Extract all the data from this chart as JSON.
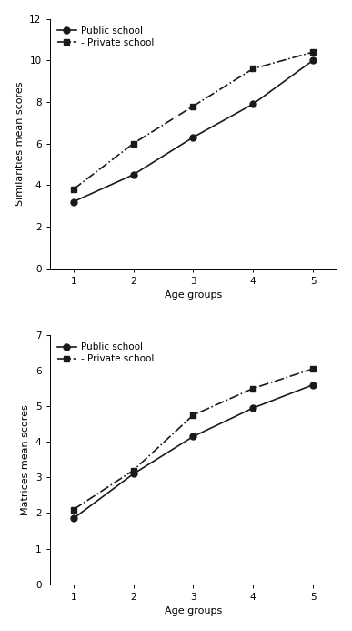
{
  "top_chart": {
    "public_school": [
      3.2,
      4.5,
      6.3,
      7.9,
      10.0
    ],
    "private_school": [
      3.8,
      6.0,
      7.8,
      9.6,
      10.4
    ],
    "x": [
      1,
      2,
      3,
      4,
      5
    ],
    "ylabel": "Similarities mean scores",
    "xlabel": "Age groups",
    "ylim": [
      0,
      12
    ],
    "yticks": [
      0,
      2,
      4,
      6,
      8,
      10,
      12
    ],
    "xticks": [
      1,
      2,
      3,
      4,
      5
    ]
  },
  "bottom_chart": {
    "public_school": [
      1.85,
      3.1,
      4.15,
      4.95,
      5.6
    ],
    "private_school": [
      2.1,
      3.2,
      4.75,
      5.5,
      6.05
    ],
    "x": [
      1,
      2,
      3,
      4,
      5
    ],
    "ylabel": "Matrices mean scores",
    "xlabel": "Age groups",
    "ylim": [
      0,
      7
    ],
    "yticks": [
      0,
      1,
      2,
      3,
      4,
      5,
      6,
      7
    ],
    "xticks": [
      1,
      2,
      3,
      4,
      5
    ]
  },
  "legend_public": "Public school",
  "legend_private": "- Private school",
  "public_color": "#1a1a1a",
  "private_color": "#1a1a1a",
  "background_color": "#ffffff",
  "marker_public": "o",
  "marker_private": "s",
  "linewidth": 1.2,
  "markersize": 5,
  "fontsize_label": 8,
  "fontsize_legend": 7.5,
  "fontsize_tick": 7.5
}
